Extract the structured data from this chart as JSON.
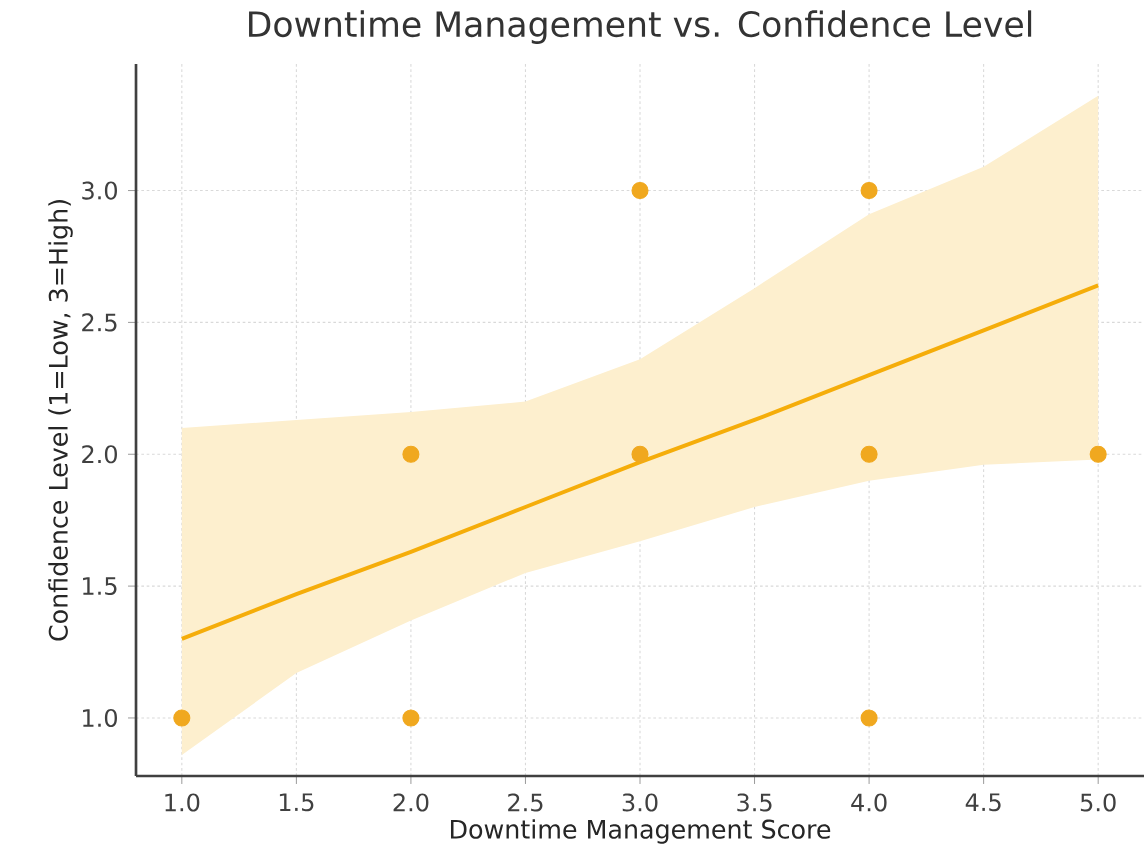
{
  "chart_data": {
    "type": "scatter",
    "title": "Downtime Management vs. Confidence Level",
    "xlabel": "Downtime Management Score",
    "ylabel": "Confidence Level (1=Low, 3=High)",
    "xlim": [
      0.8,
      5.2
    ],
    "ylim": [
      0.78,
      3.48
    ],
    "xticks": [
      {
        "value": 1,
        "label": "1.0"
      },
      {
        "value": 1.5,
        "label": "1.5"
      },
      {
        "value": 2,
        "label": "2.0"
      },
      {
        "value": 2.5,
        "label": "2.5"
      },
      {
        "value": 3,
        "label": "3.0"
      },
      {
        "value": 3.5,
        "label": "3.5"
      },
      {
        "value": 4,
        "label": "4.0"
      },
      {
        "value": 4.5,
        "label": "4.5"
      },
      {
        "value": 5,
        "label": "5.0"
      }
    ],
    "yticks": [
      {
        "value": 1,
        "label": "1.0"
      },
      {
        "value": 1.5,
        "label": "1.5"
      },
      {
        "value": 2,
        "label": "2.0"
      },
      {
        "value": 2.5,
        "label": "2.5"
      },
      {
        "value": 3,
        "label": "3.0"
      }
    ],
    "grid": true,
    "series": [
      {
        "marker": "circle",
        "color": "#f0a81f",
        "x": [
          1,
          2,
          2,
          3,
          3,
          4,
          4,
          4,
          5
        ],
        "values": [
          1,
          1,
          2,
          2,
          3,
          1,
          2,
          3,
          2
        ]
      },
      {
        "type": "line",
        "marker": "none",
        "color": "#f5ad0a",
        "x": [
          1,
          1.5,
          2,
          2.5,
          3,
          3.5,
          4,
          4.5,
          5
        ],
        "values": [
          1.3,
          1.47,
          1.63,
          1.8,
          1.97,
          2.13,
          2.3,
          2.47,
          2.64
        ],
        "lower": [
          0.86,
          1.17,
          1.37,
          1.55,
          1.67,
          1.8,
          1.9,
          1.96,
          1.98
        ],
        "upper": [
          2.1,
          2.13,
          2.16,
          2.2,
          2.36,
          2.63,
          2.91,
          3.09,
          3.36
        ]
      }
    ]
  }
}
